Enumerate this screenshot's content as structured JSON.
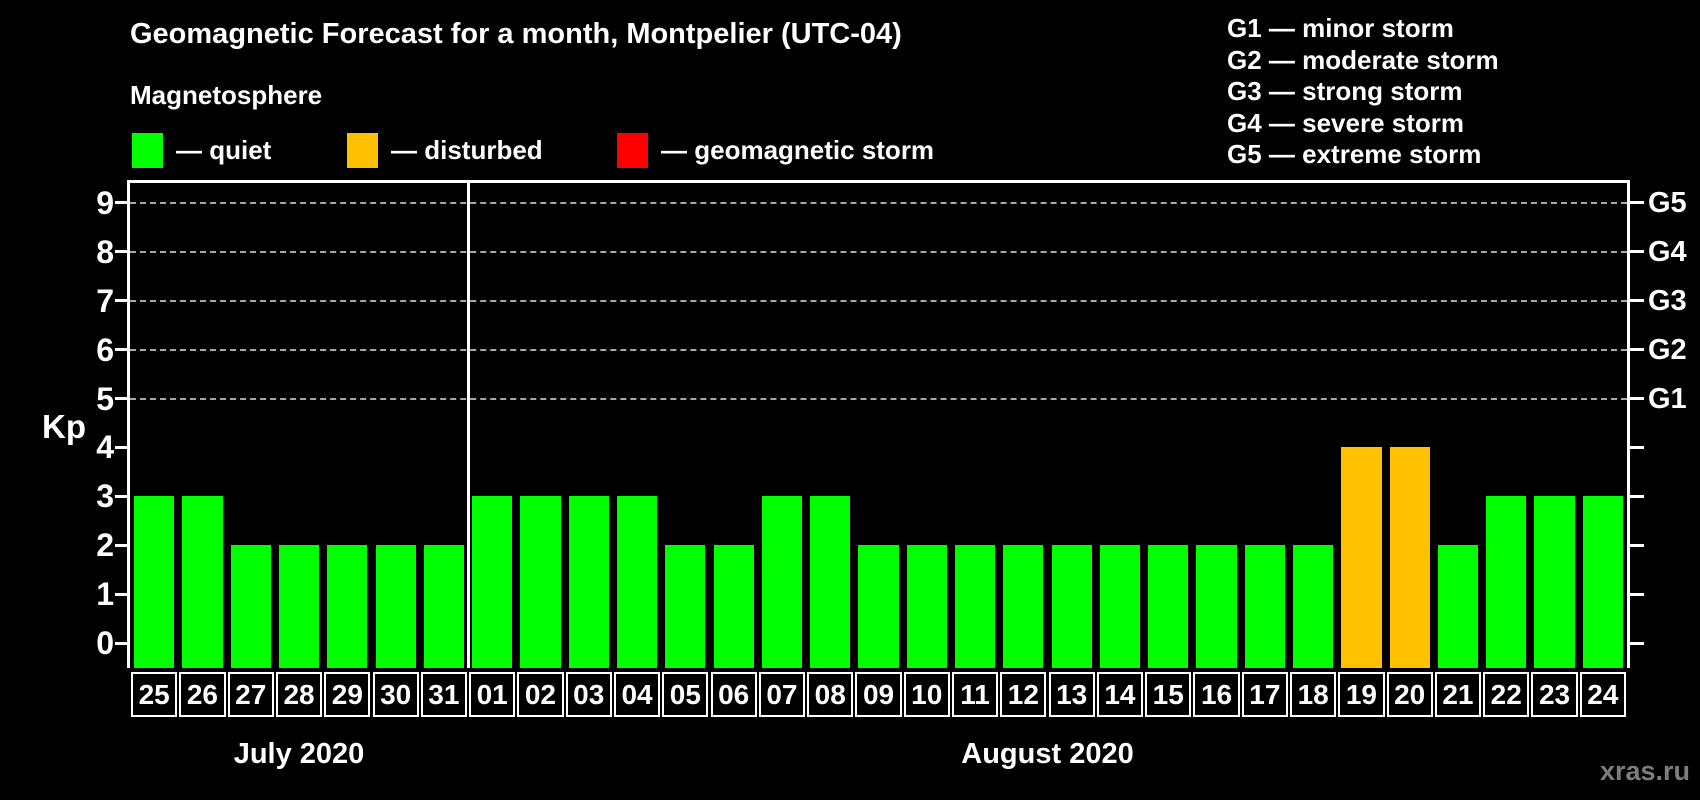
{
  "title": "Geomagnetic Forecast for a month, Montpelier (UTC-04)",
  "subtitle": "Magnetosphere",
  "watermark": "xras.ru",
  "y_axis": {
    "label": "Kp",
    "ticks": [
      0,
      1,
      2,
      3,
      4,
      5,
      6,
      7,
      8,
      9
    ]
  },
  "right_axis": {
    "labels": [
      {
        "value": 5,
        "label": "G1"
      },
      {
        "value": 6,
        "label": "G2"
      },
      {
        "value": 7,
        "label": "G3"
      },
      {
        "value": 8,
        "label": "G4"
      },
      {
        "value": 9,
        "label": "G5"
      }
    ]
  },
  "legend": {
    "items": [
      {
        "status": "quiet",
        "label": "— quiet",
        "color": "#00ff00"
      },
      {
        "status": "disturbed",
        "label": "— disturbed",
        "color": "#ffc000"
      },
      {
        "status": "storm",
        "label": "— geomagnetic storm",
        "color": "#ff0000"
      }
    ]
  },
  "g_legend": [
    "G1 — minor storm",
    "G2 — moderate storm",
    "G3 — strong storm",
    "G4 — severe storm",
    "G5 — extreme storm"
  ],
  "months": [
    {
      "label": "July 2020",
      "days": 7
    },
    {
      "label": "August 2020",
      "days": 24
    }
  ],
  "chart_data": {
    "type": "bar",
    "title": "Geomagnetic Forecast for a month, Montpelier (UTC-04)",
    "ylabel": "Kp",
    "ylim": [
      0,
      9
    ],
    "grid": "dashed horizontal lines at Kp 5-9 only",
    "gridlines_at": [
      5,
      6,
      7,
      8,
      9
    ],
    "legend_position": "top-left",
    "categories": [
      "Jul 25",
      "Jul 26",
      "Jul 27",
      "Jul 28",
      "Jul 29",
      "Jul 30",
      "Jul 31",
      "Aug 01",
      "Aug 02",
      "Aug 03",
      "Aug 04",
      "Aug 05",
      "Aug 06",
      "Aug 07",
      "Aug 08",
      "Aug 09",
      "Aug 10",
      "Aug 11",
      "Aug 12",
      "Aug 13",
      "Aug 14",
      "Aug 15",
      "Aug 16",
      "Aug 17",
      "Aug 18",
      "Aug 19",
      "Aug 20",
      "Aug 21",
      "Aug 22",
      "Aug 23",
      "Aug 24"
    ],
    "tick_labels": [
      "25",
      "26",
      "27",
      "28",
      "29",
      "30",
      "31",
      "01",
      "02",
      "03",
      "04",
      "05",
      "06",
      "07",
      "08",
      "09",
      "10",
      "11",
      "12",
      "13",
      "14",
      "15",
      "16",
      "17",
      "18",
      "19",
      "20",
      "21",
      "22",
      "23",
      "24"
    ],
    "values": [
      3,
      3,
      2,
      2,
      2,
      2,
      2,
      3,
      3,
      3,
      3,
      2,
      2,
      3,
      3,
      2,
      2,
      2,
      2,
      2,
      2,
      2,
      2,
      2,
      2,
      4,
      4,
      2,
      3,
      3,
      3
    ],
    "statuses": [
      "quiet",
      "quiet",
      "quiet",
      "quiet",
      "quiet",
      "quiet",
      "quiet",
      "quiet",
      "quiet",
      "quiet",
      "quiet",
      "quiet",
      "quiet",
      "quiet",
      "quiet",
      "quiet",
      "quiet",
      "quiet",
      "quiet",
      "quiet",
      "quiet",
      "quiet",
      "quiet",
      "quiet",
      "quiet",
      "disturbed",
      "disturbed",
      "quiet",
      "quiet",
      "quiet",
      "quiet"
    ]
  }
}
